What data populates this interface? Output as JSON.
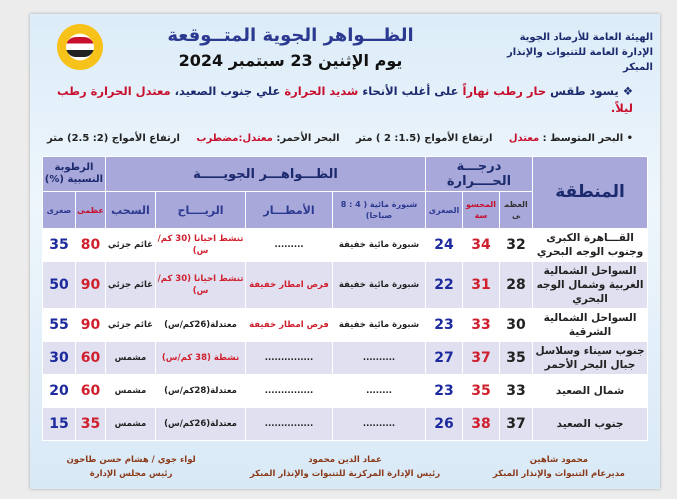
{
  "header": {
    "org_line1": "الهيئة العامة للأرصاد الجوية",
    "org_line2": "الإدارة العامة للتنبوات والإنذار المبكر",
    "title": "الظـــواهر الجوية المتــوقعة",
    "date": "يوم الإثنين 23 سبتمبر 2024"
  },
  "summary": {
    "bullet": "❖",
    "p1": "يسود طقس ",
    "p2": "حار رطب نهاراً",
    "p3": " على أغلب الأنحاء ",
    "p4": "شديد الحرارة",
    "p5": " علي جنوب الصعيد، ",
    "p6": "معتدل الحرارة رطب ليلاً."
  },
  "seas": {
    "med_label": "• البحر المتوسط : ",
    "med_state": "معتدل",
    "med_waves": "ارتفاع الأمواج (1.5: 2 ) متر",
    "red_label": "البحر الأحمر: ",
    "red_state": "معتدل:مضطرب",
    "red_waves": "ارتفاع الأمواج (2: 2.5) متر"
  },
  "table": {
    "region_header": "المنطقة",
    "temp_header": "درجـــة الحــــرارة",
    "phenomena_header": "الظـــواهـــر الجويـــــة",
    "humidity_header": "الرطوبة النسبية (%)",
    "sub": {
      "max": "العظمى",
      "felt": "المحسوسة",
      "min": "الصغرى",
      "fog": "شبورة مائية ( 4 : 8 صباحا)",
      "rain": "الأمطـــار",
      "wind": "الريــــاح",
      "clouds": "السحب",
      "hmax": "عظمى",
      "hmin": "صغرى"
    },
    "rows": [
      {
        "region": "القـــاهرة الكبرى وجنوب الوجه البحري",
        "max": "32",
        "felt": "34",
        "min": "24",
        "fog": "شبورة مائية خفيفة",
        "rain": ".........",
        "wind": "تنشط احيانا (30 كم/س)",
        "wind_red": true,
        "rain_red": false,
        "clouds": "غائم جزئي",
        "hmax": "80",
        "hmin": "35"
      },
      {
        "region": "السواحل الشمالية الغربية وشمال الوجه البحري",
        "max": "28",
        "felt": "31",
        "min": "22",
        "fog": "شبورة مائية خفيفة",
        "rain": "فرص امطار خفيفة",
        "wind": "تنشط احيانا (30 كم/س)",
        "wind_red": true,
        "rain_red": true,
        "clouds": "غائم جزئي",
        "hmax": "90",
        "hmin": "50"
      },
      {
        "region": "السواحل الشمالية الشرقية",
        "max": "30",
        "felt": "33",
        "min": "23",
        "fog": "شبورة مائية خفيفة",
        "rain": "فرص امطار خفيفة",
        "wind": "معتدلة(26كم/س)",
        "wind_red": false,
        "rain_red": true,
        "clouds": "غائم جزئي",
        "hmax": "90",
        "hmin": "55"
      },
      {
        "region": "جنوب سيناء وسلاسل جبال البحر الأحمر",
        "max": "35",
        "felt": "37",
        "min": "27",
        "fog": "..........",
        "rain": "...............",
        "wind": "نشطة (38 كم/س)",
        "wind_red": true,
        "rain_red": false,
        "clouds": "مشمس",
        "hmax": "60",
        "hmin": "30"
      },
      {
        "region": "شمال الصعيد",
        "max": "33",
        "felt": "35",
        "min": "23",
        "fog": "........",
        "rain": "...............",
        "wind": "معتدلة(28كم/س)",
        "wind_red": false,
        "rain_red": false,
        "clouds": "مشمس",
        "hmax": "60",
        "hmin": "20"
      },
      {
        "region": "جنوب الصعيد",
        "max": "37",
        "felt": "38",
        "min": "26",
        "fog": "..........",
        "rain": "...............",
        "wind": "معتدلة(26كم/س)",
        "wind_red": false,
        "rain_red": false,
        "clouds": "مشمس",
        "hmax": "35",
        "hmin": "15"
      }
    ]
  },
  "signatures": [
    {
      "name": "محمود شاهين",
      "role": "مديرعام التنبوات والإنذار المبكر"
    },
    {
      "name": "عماد الدين محمود",
      "role": "رئيس الإدارة المركزية للتنبوات والإنذار المبكر"
    },
    {
      "name": "لواء جوي / هشام حسن طاحون",
      "role": "رئيس مجلس الإدارة"
    }
  ],
  "colors": {
    "accent_red": "#c8102e",
    "header_purple": "#a8a8da",
    "navy": "#1c2a6e"
  }
}
